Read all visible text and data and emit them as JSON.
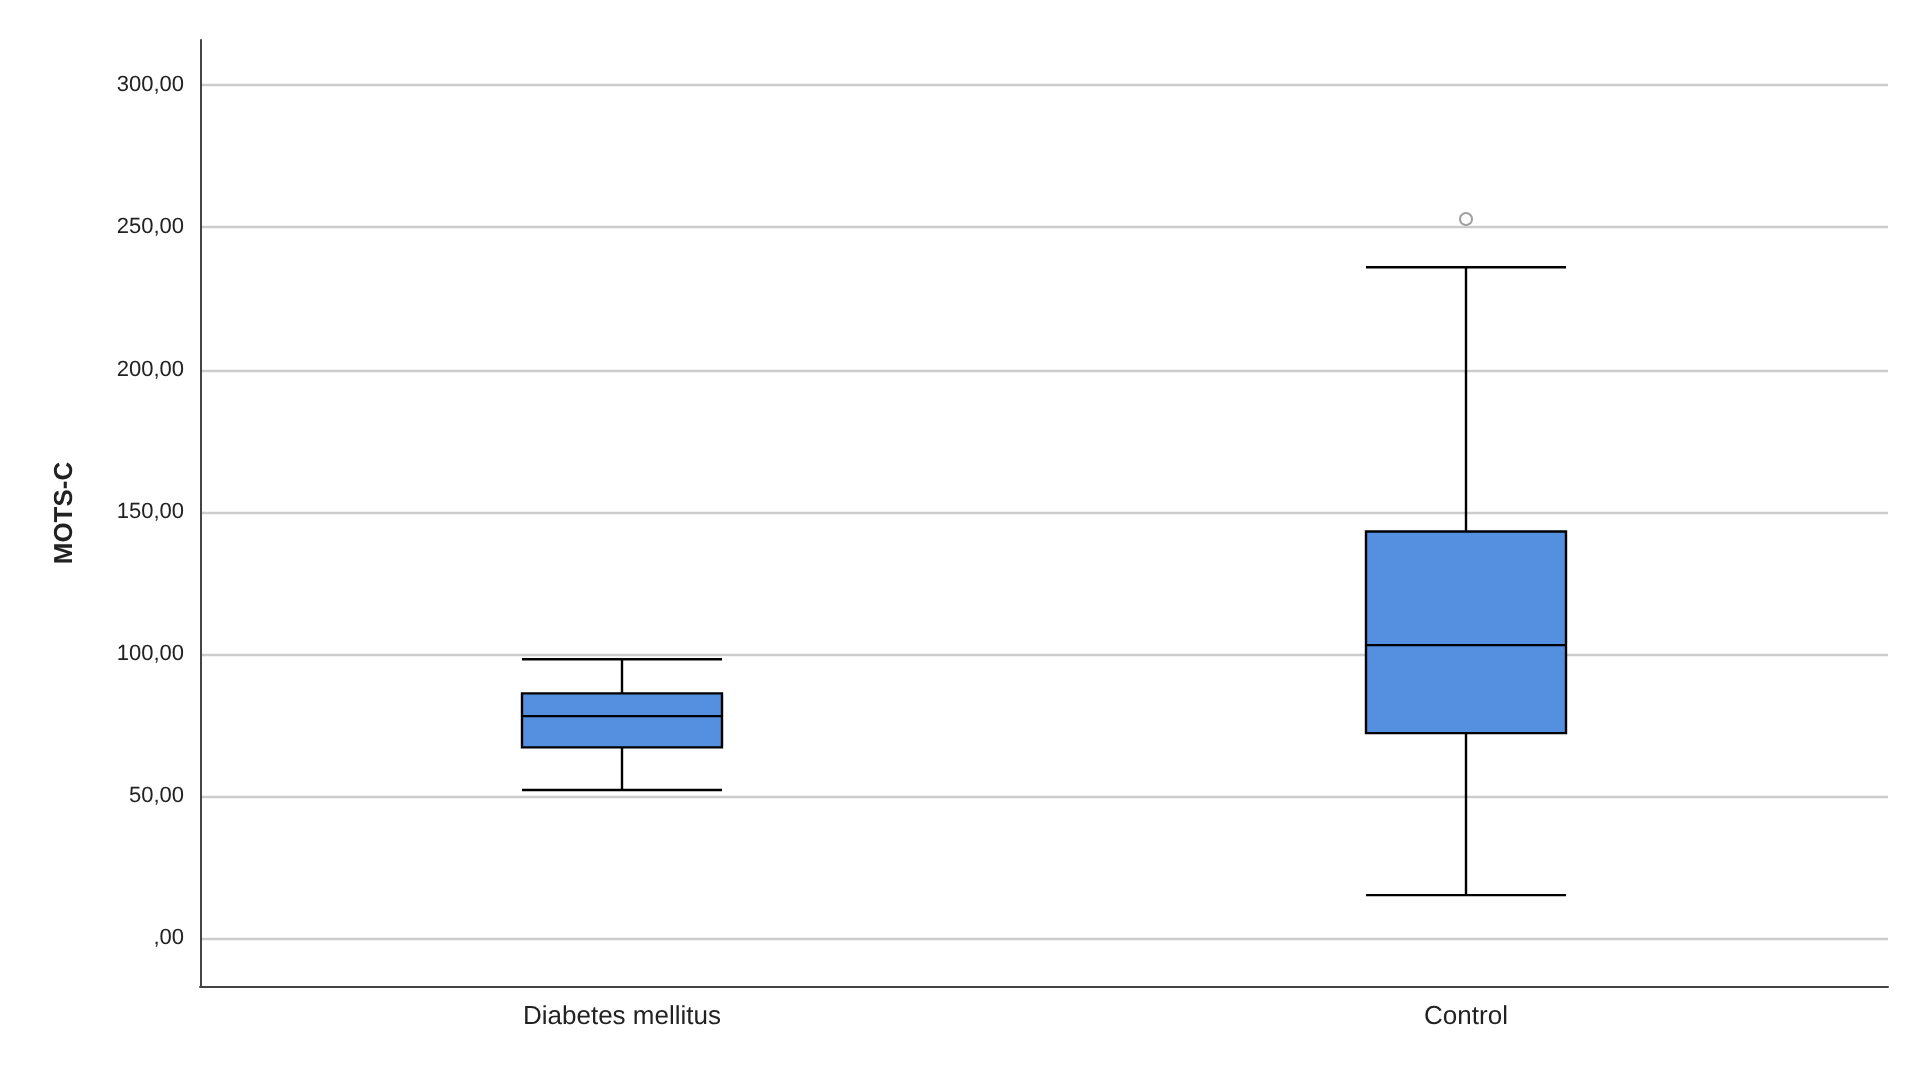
{
  "chart_data": {
    "type": "box",
    "ylabel": "MOTS-C",
    "categories": [
      "Diabetes mellitus",
      "Control"
    ],
    "series": [
      {
        "color": "#5590e0",
        "boxes": [
          {
            "low": 52,
            "q1": 67,
            "median": 78,
            "q3": 86,
            "high": 98
          },
          {
            "low": 15,
            "q1": 72,
            "median": 103,
            "q3": 143,
            "high": 236,
            "outliers": [
              253
            ]
          }
        ]
      }
    ],
    "ylim": [
      -17,
      316
    ],
    "yticks": [
      {
        "value": 0,
        "label": ",00"
      },
      {
        "value": 50,
        "label": "50,00"
      },
      {
        "value": 100,
        "label": "100,00"
      },
      {
        "value": 150,
        "label": "150,00"
      },
      {
        "value": 200,
        "label": "200,00"
      },
      {
        "value": 250,
        "label": "250,00"
      },
      {
        "value": 300,
        "label": "300,00"
      }
    ],
    "grid": "y"
  }
}
